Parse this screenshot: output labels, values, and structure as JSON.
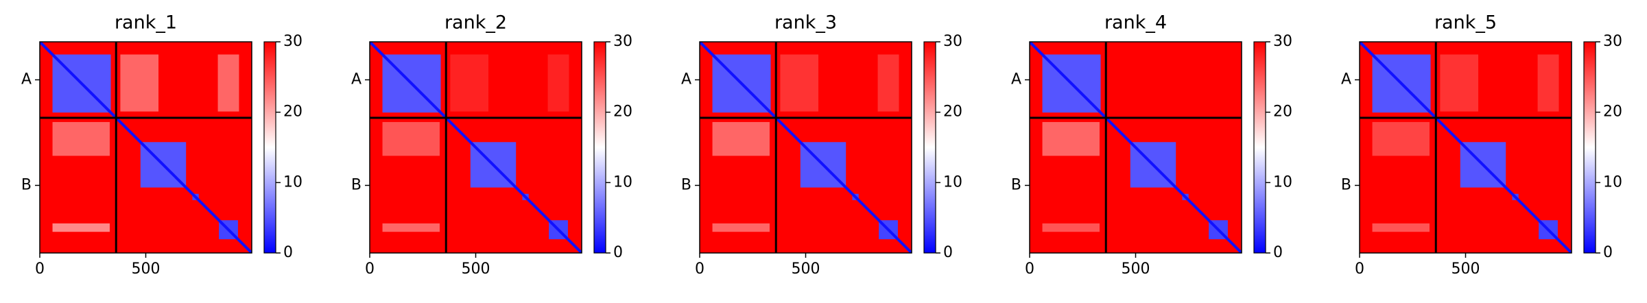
{
  "chart_data": [
    {
      "type": "heatmap",
      "title": "rank_1",
      "xlim": [
        0,
        1000
      ],
      "ylim": [
        1000,
        0
      ],
      "xticks": [
        0,
        500
      ],
      "yticks": [
        {
          "value": 180,
          "label": "A"
        },
        {
          "value": 680,
          "label": "B"
        }
      ],
      "clim": [
        0,
        30
      ],
      "cticks": [
        0,
        10,
        20,
        30
      ],
      "colormap": [
        "#0000ff",
        "#ffffff",
        "#ff0000"
      ],
      "background": 30,
      "diagonal": 1,
      "boundaries": [
        360
      ],
      "regions": [
        {
          "rows": [
            60,
            330
          ],
          "cols": [
            380,
            560
          ],
          "value": 24
        },
        {
          "rows": [
            60,
            330
          ],
          "cols": [
            840,
            940
          ],
          "value": 24
        },
        {
          "rows": [
            380,
            540
          ],
          "cols": [
            60,
            330
          ],
          "value": 24
        },
        {
          "rows": [
            860,
            900
          ],
          "cols": [
            60,
            330
          ],
          "value": 22
        },
        {
          "rows": [
            60,
            335
          ],
          "cols": [
            60,
            335
          ],
          "value": 5
        },
        {
          "rows": [
            475,
            690
          ],
          "cols": [
            475,
            690
          ],
          "value": 5
        },
        {
          "rows": [
            720,
            750
          ],
          "cols": [
            720,
            750
          ],
          "value": 4
        },
        {
          "rows": [
            845,
            935
          ],
          "cols": [
            845,
            935
          ],
          "value": 4
        }
      ]
    },
    {
      "type": "heatmap",
      "title": "rank_2",
      "xlim": [
        0,
        1000
      ],
      "ylim": [
        1000,
        0
      ],
      "xticks": [
        0,
        500
      ],
      "yticks": [
        {
          "value": 180,
          "label": "A"
        },
        {
          "value": 680,
          "label": "B"
        }
      ],
      "clim": [
        0,
        30
      ],
      "cticks": [
        0,
        10,
        20,
        30
      ],
      "colormap": [
        "#0000ff",
        "#ffffff",
        "#ff0000"
      ],
      "background": 30,
      "diagonal": 1,
      "boundaries": [
        360
      ],
      "regions": [
        {
          "rows": [
            60,
            330
          ],
          "cols": [
            380,
            560
          ],
          "value": 28
        },
        {
          "rows": [
            60,
            330
          ],
          "cols": [
            840,
            940
          ],
          "value": 28
        },
        {
          "rows": [
            380,
            540
          ],
          "cols": [
            60,
            330
          ],
          "value": 25
        },
        {
          "rows": [
            860,
            900
          ],
          "cols": [
            60,
            330
          ],
          "value": 24
        },
        {
          "rows": [
            60,
            335
          ],
          "cols": [
            60,
            335
          ],
          "value": 5
        },
        {
          "rows": [
            475,
            690
          ],
          "cols": [
            475,
            690
          ],
          "value": 5
        },
        {
          "rows": [
            720,
            750
          ],
          "cols": [
            720,
            750
          ],
          "value": 4
        },
        {
          "rows": [
            845,
            935
          ],
          "cols": [
            845,
            935
          ],
          "value": 4
        }
      ]
    },
    {
      "type": "heatmap",
      "title": "rank_3",
      "xlim": [
        0,
        1000
      ],
      "ylim": [
        1000,
        0
      ],
      "xticks": [
        0,
        500
      ],
      "yticks": [
        {
          "value": 180,
          "label": "A"
        },
        {
          "value": 680,
          "label": "B"
        }
      ],
      "clim": [
        0,
        30
      ],
      "cticks": [
        0,
        10,
        20,
        30
      ],
      "colormap": [
        "#0000ff",
        "#ffffff",
        "#ff0000"
      ],
      "background": 30,
      "diagonal": 1,
      "boundaries": [
        360
      ],
      "regions": [
        {
          "rows": [
            60,
            330
          ],
          "cols": [
            380,
            560
          ],
          "value": 27
        },
        {
          "rows": [
            60,
            330
          ],
          "cols": [
            840,
            940
          ],
          "value": 27
        },
        {
          "rows": [
            380,
            540
          ],
          "cols": [
            60,
            330
          ],
          "value": 24
        },
        {
          "rows": [
            860,
            900
          ],
          "cols": [
            60,
            330
          ],
          "value": 24
        },
        {
          "rows": [
            60,
            335
          ],
          "cols": [
            60,
            335
          ],
          "value": 5
        },
        {
          "rows": [
            475,
            690
          ],
          "cols": [
            475,
            690
          ],
          "value": 5
        },
        {
          "rows": [
            720,
            750
          ],
          "cols": [
            720,
            750
          ],
          "value": 4
        },
        {
          "rows": [
            845,
            935
          ],
          "cols": [
            845,
            935
          ],
          "value": 4
        }
      ]
    },
    {
      "type": "heatmap",
      "title": "rank_4",
      "xlim": [
        0,
        1000
      ],
      "ylim": [
        1000,
        0
      ],
      "xticks": [
        0,
        500
      ],
      "yticks": [
        {
          "value": 180,
          "label": "A"
        },
        {
          "value": 680,
          "label": "B"
        }
      ],
      "clim": [
        0,
        30
      ],
      "cticks": [
        0,
        10,
        20,
        30
      ],
      "colormap": [
        "#0000ff",
        "#ffffff",
        "#ff0000"
      ],
      "background": 30,
      "diagonal": 1,
      "boundaries": [
        360
      ],
      "regions": [
        {
          "rows": [
            380,
            540
          ],
          "cols": [
            60,
            330
          ],
          "value": 24
        },
        {
          "rows": [
            860,
            900
          ],
          "cols": [
            60,
            330
          ],
          "value": 25
        },
        {
          "rows": [
            60,
            335
          ],
          "cols": [
            60,
            335
          ],
          "value": 5
        },
        {
          "rows": [
            475,
            690
          ],
          "cols": [
            475,
            690
          ],
          "value": 5
        },
        {
          "rows": [
            720,
            750
          ],
          "cols": [
            720,
            750
          ],
          "value": 4
        },
        {
          "rows": [
            845,
            935
          ],
          "cols": [
            845,
            935
          ],
          "value": 4
        }
      ]
    },
    {
      "type": "heatmap",
      "title": "rank_5",
      "xlim": [
        0,
        1000
      ],
      "ylim": [
        1000,
        0
      ],
      "xticks": [
        0,
        500
      ],
      "yticks": [
        {
          "value": 180,
          "label": "A"
        },
        {
          "value": 680,
          "label": "B"
        }
      ],
      "clim": [
        0,
        30
      ],
      "cticks": [
        0,
        10,
        20,
        30
      ],
      "colormap": [
        "#0000ff",
        "#ffffff",
        "#ff0000"
      ],
      "background": 30,
      "diagonal": 1,
      "boundaries": [
        360
      ],
      "regions": [
        {
          "rows": [
            60,
            330
          ],
          "cols": [
            380,
            560
          ],
          "value": 27
        },
        {
          "rows": [
            60,
            330
          ],
          "cols": [
            840,
            940
          ],
          "value": 27
        },
        {
          "rows": [
            380,
            540
          ],
          "cols": [
            60,
            330
          ],
          "value": 26
        },
        {
          "rows": [
            860,
            900
          ],
          "cols": [
            60,
            330
          ],
          "value": 25
        },
        {
          "rows": [
            60,
            335
          ],
          "cols": [
            60,
            335
          ],
          "value": 5
        },
        {
          "rows": [
            475,
            690
          ],
          "cols": [
            475,
            690
          ],
          "value": 5
        },
        {
          "rows": [
            720,
            750
          ],
          "cols": [
            720,
            750
          ],
          "value": 4
        },
        {
          "rows": [
            845,
            935
          ],
          "cols": [
            845,
            935
          ],
          "value": 4
        }
      ]
    }
  ]
}
